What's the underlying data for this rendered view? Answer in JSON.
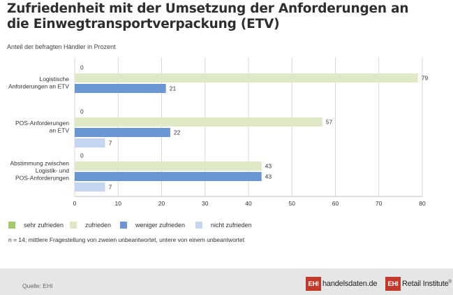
{
  "header": {
    "title_line1": "Zufriedenheit mit der Umsetzung der Anforderungen an",
    "title_line2": "die Einwegtransportverpackung (ETV)",
    "subtitle": "Anteil der befragten Händler in Prozent"
  },
  "chart_data": {
    "type": "bar",
    "orientation": "horizontal",
    "title": "Zufriedenheit mit der Umsetzung der Anforderungen an die Einwegtransportverpackung (ETV)",
    "subtitle": "Anteil der befragten Händler in Prozent",
    "xlim": [
      0,
      80
    ],
    "xticks": [
      0,
      10,
      20,
      30,
      40,
      50,
      60,
      70,
      80
    ],
    "grid": true,
    "categories": [
      [
        "Logistische",
        "Anforderungen an ETV"
      ],
      [
        "POS-Anforderungen",
        "an ETV"
      ],
      [
        "Abstimmung zwischen",
        "Logistik- und",
        "POS-Anforderungen"
      ]
    ],
    "series": [
      {
        "name": "sehr zufrieden",
        "color": "#a4c96b",
        "values": [
          0,
          0,
          0
        ]
      },
      {
        "name": "zufrieden",
        "color": "#dfe9c6",
        "values": [
          79,
          57,
          43
        ]
      },
      {
        "name": "weniger zufrieden",
        "color": "#6a97d3",
        "values": [
          21,
          22,
          43
        ]
      },
      {
        "name": "nicht zufrieden",
        "color": "#c6d6f0",
        "values": [
          0,
          7,
          7
        ]
      }
    ],
    "hidden_zero_labels": [
      [
        3,
        0
      ]
    ]
  },
  "note": "n = 14; mittlere Fragestellung von zweien unbeantwortet, untere von einem unbeantwortet",
  "footer": {
    "source": "Quelle: EHI",
    "logo1_box": "EHI",
    "logo1_text": "handelsdaten.de",
    "logo2_box": "EHI",
    "logo2_text": "Retail Institute",
    "logo2_mark": "®"
  }
}
